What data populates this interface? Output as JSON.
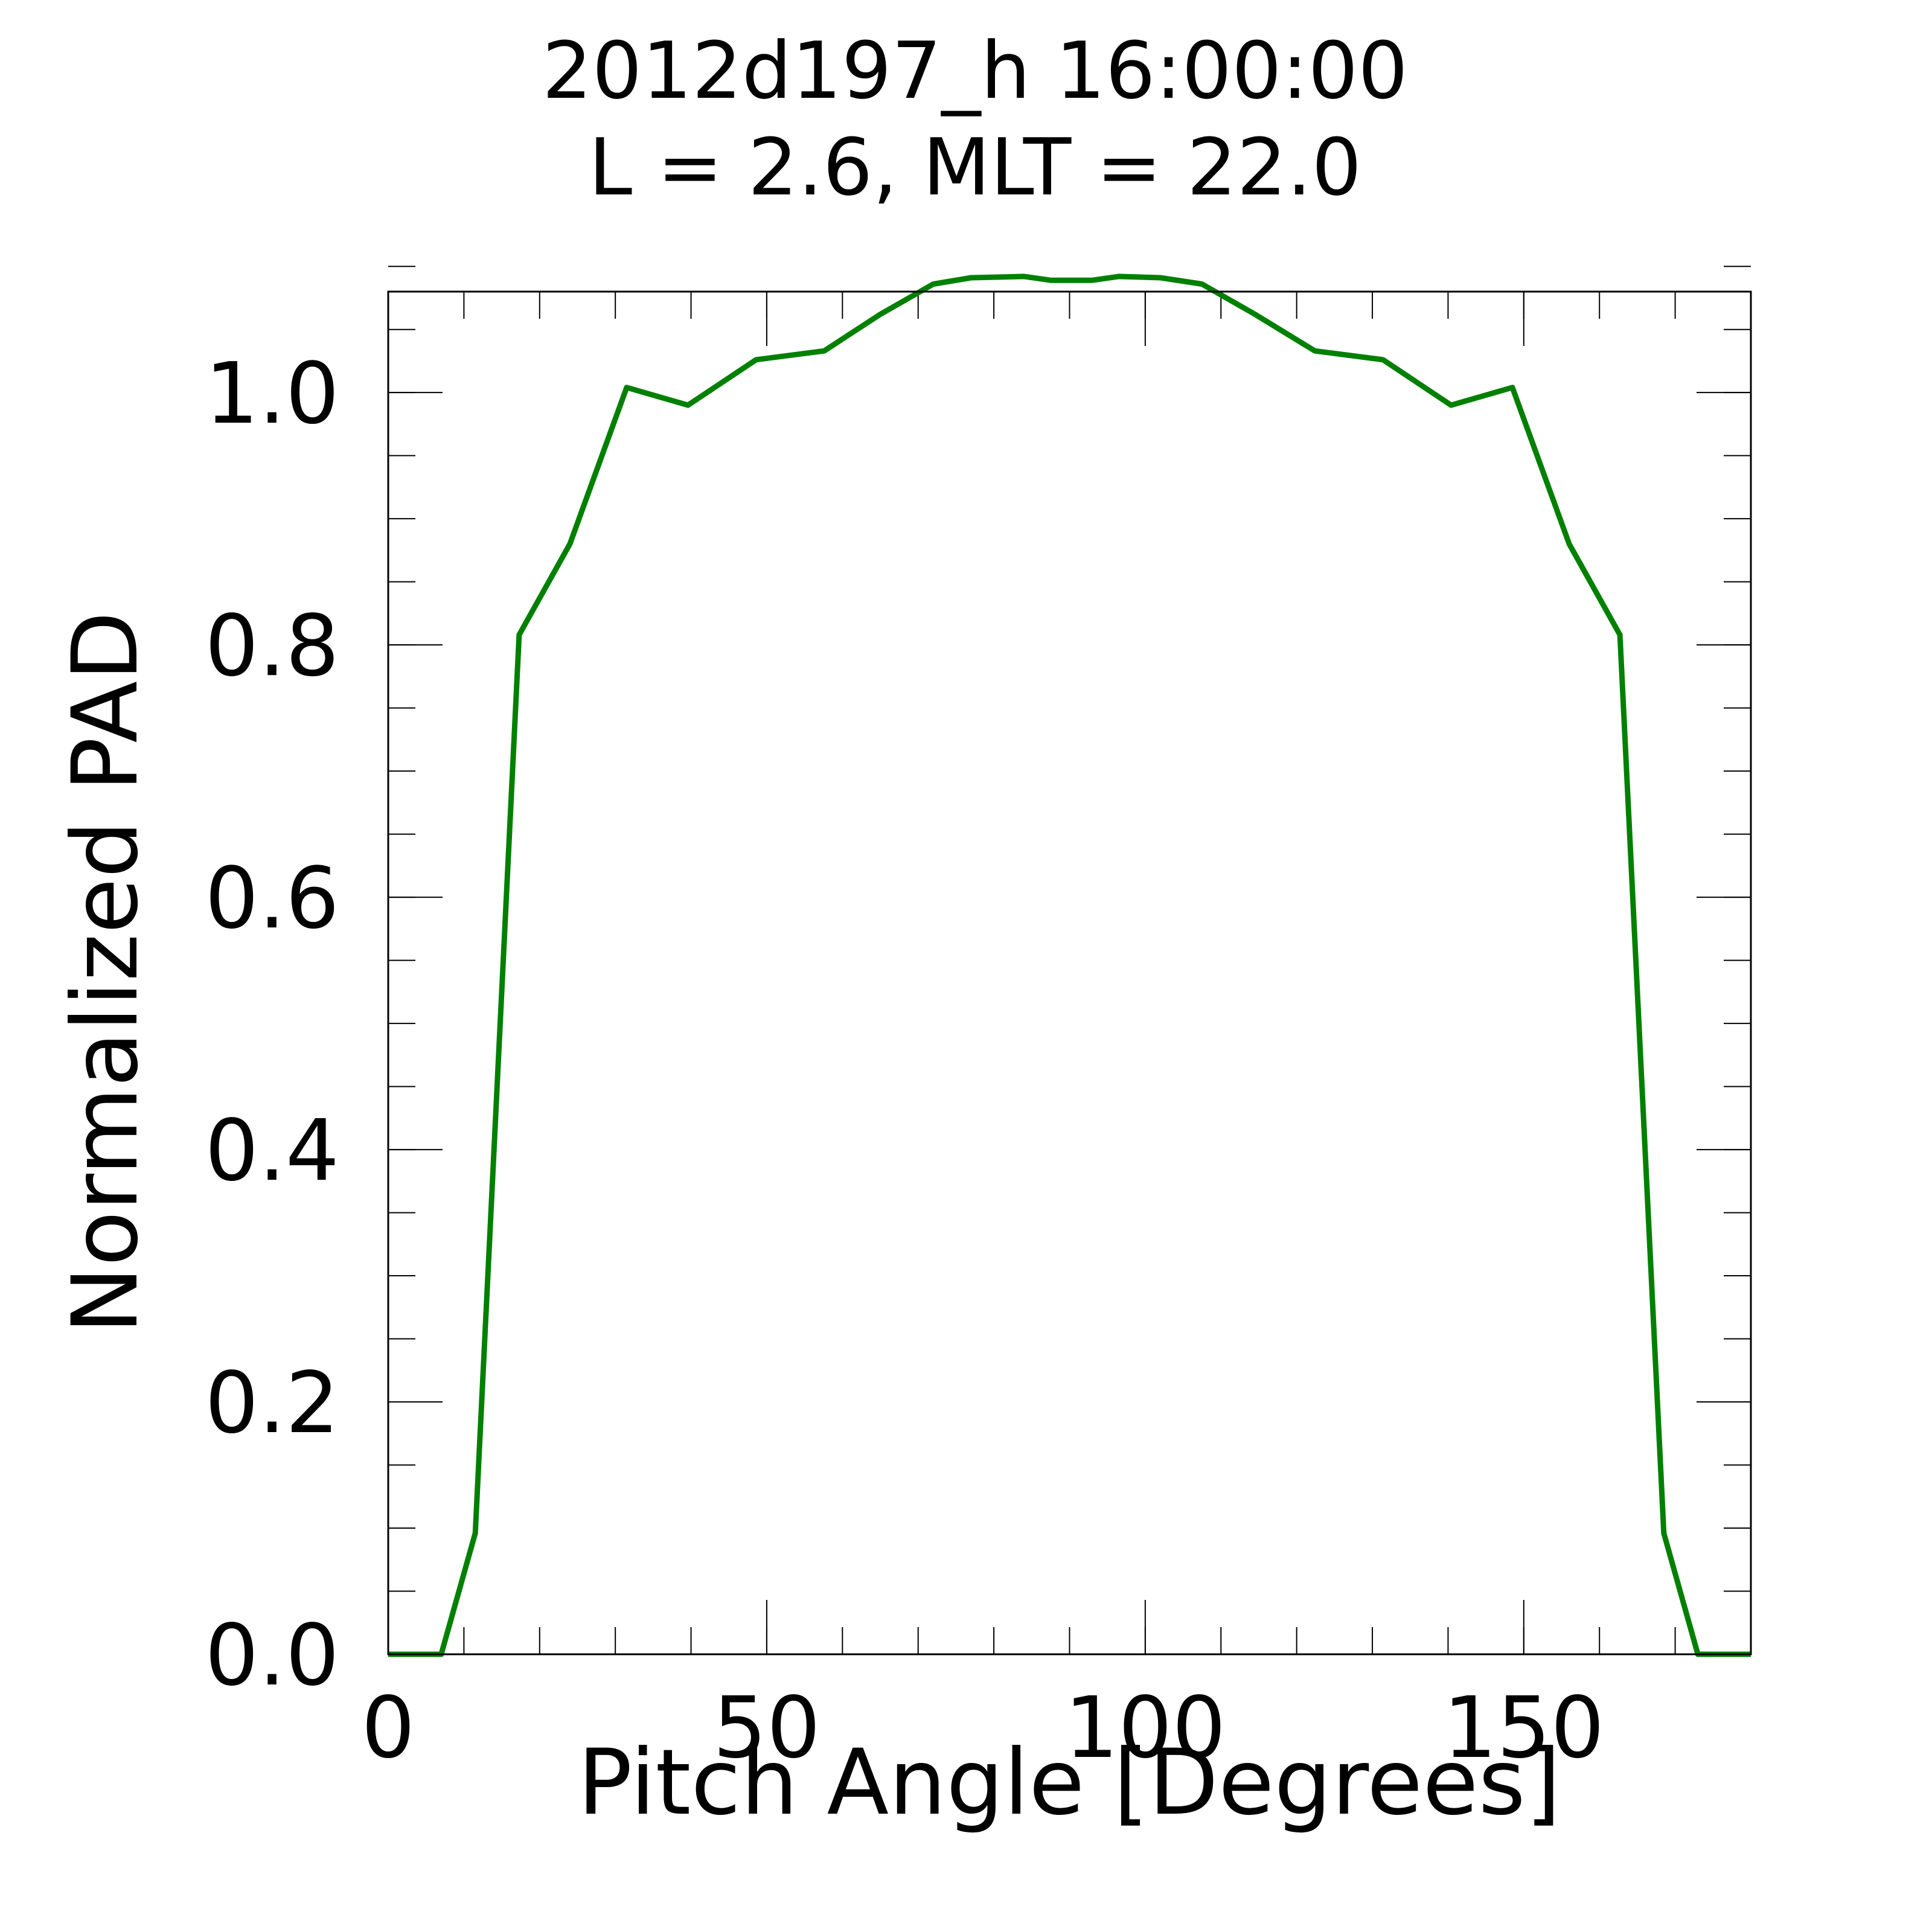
{
  "chart_data": {
    "type": "line",
    "title": "2012d197_h  16:00:00",
    "subtitle": "L = 2.6, MLT = 22.0",
    "xlabel": "Pitch Angle [Degrees]",
    "ylabel": "Normalized PAD",
    "xlim": [
      0,
      180
    ],
    "ylim": [
      0,
      1.08
    ],
    "xticks": [
      0,
      50,
      100,
      150
    ],
    "xtick_labels": [
      "0",
      "50",
      "100",
      "150"
    ],
    "yticks": [
      0.0,
      0.2,
      0.4,
      0.6,
      0.8,
      1.0
    ],
    "ytick_labels": [
      "0.0",
      "0.2",
      "0.4",
      "0.6",
      "0.8",
      "1.0"
    ],
    "x_minor_step": 10,
    "y_minor_step": 0.05,
    "grid": false,
    "series": [
      {
        "color": "#008000",
        "x": [
          0,
          7,
          11.5,
          17.3,
          24,
          31.5,
          39.6,
          48.6,
          57.6,
          65,
          72,
          77,
          84,
          87.5,
          93,
          96.5,
          102,
          107.5,
          114.5,
          122.4,
          131.4,
          140.4,
          148.5,
          156,
          162.7,
          168.5,
          173,
          180
        ],
        "y": [
          0.0,
          0.0,
          0.096,
          0.808,
          0.88,
          1.004,
          0.99,
          1.026,
          1.033,
          1.062,
          1.086,
          1.091,
          1.092,
          1.089,
          1.089,
          1.092,
          1.091,
          1.086,
          1.062,
          1.033,
          1.026,
          0.99,
          1.004,
          0.88,
          0.808,
          0.096,
          0.0,
          0.0
        ]
      }
    ]
  }
}
